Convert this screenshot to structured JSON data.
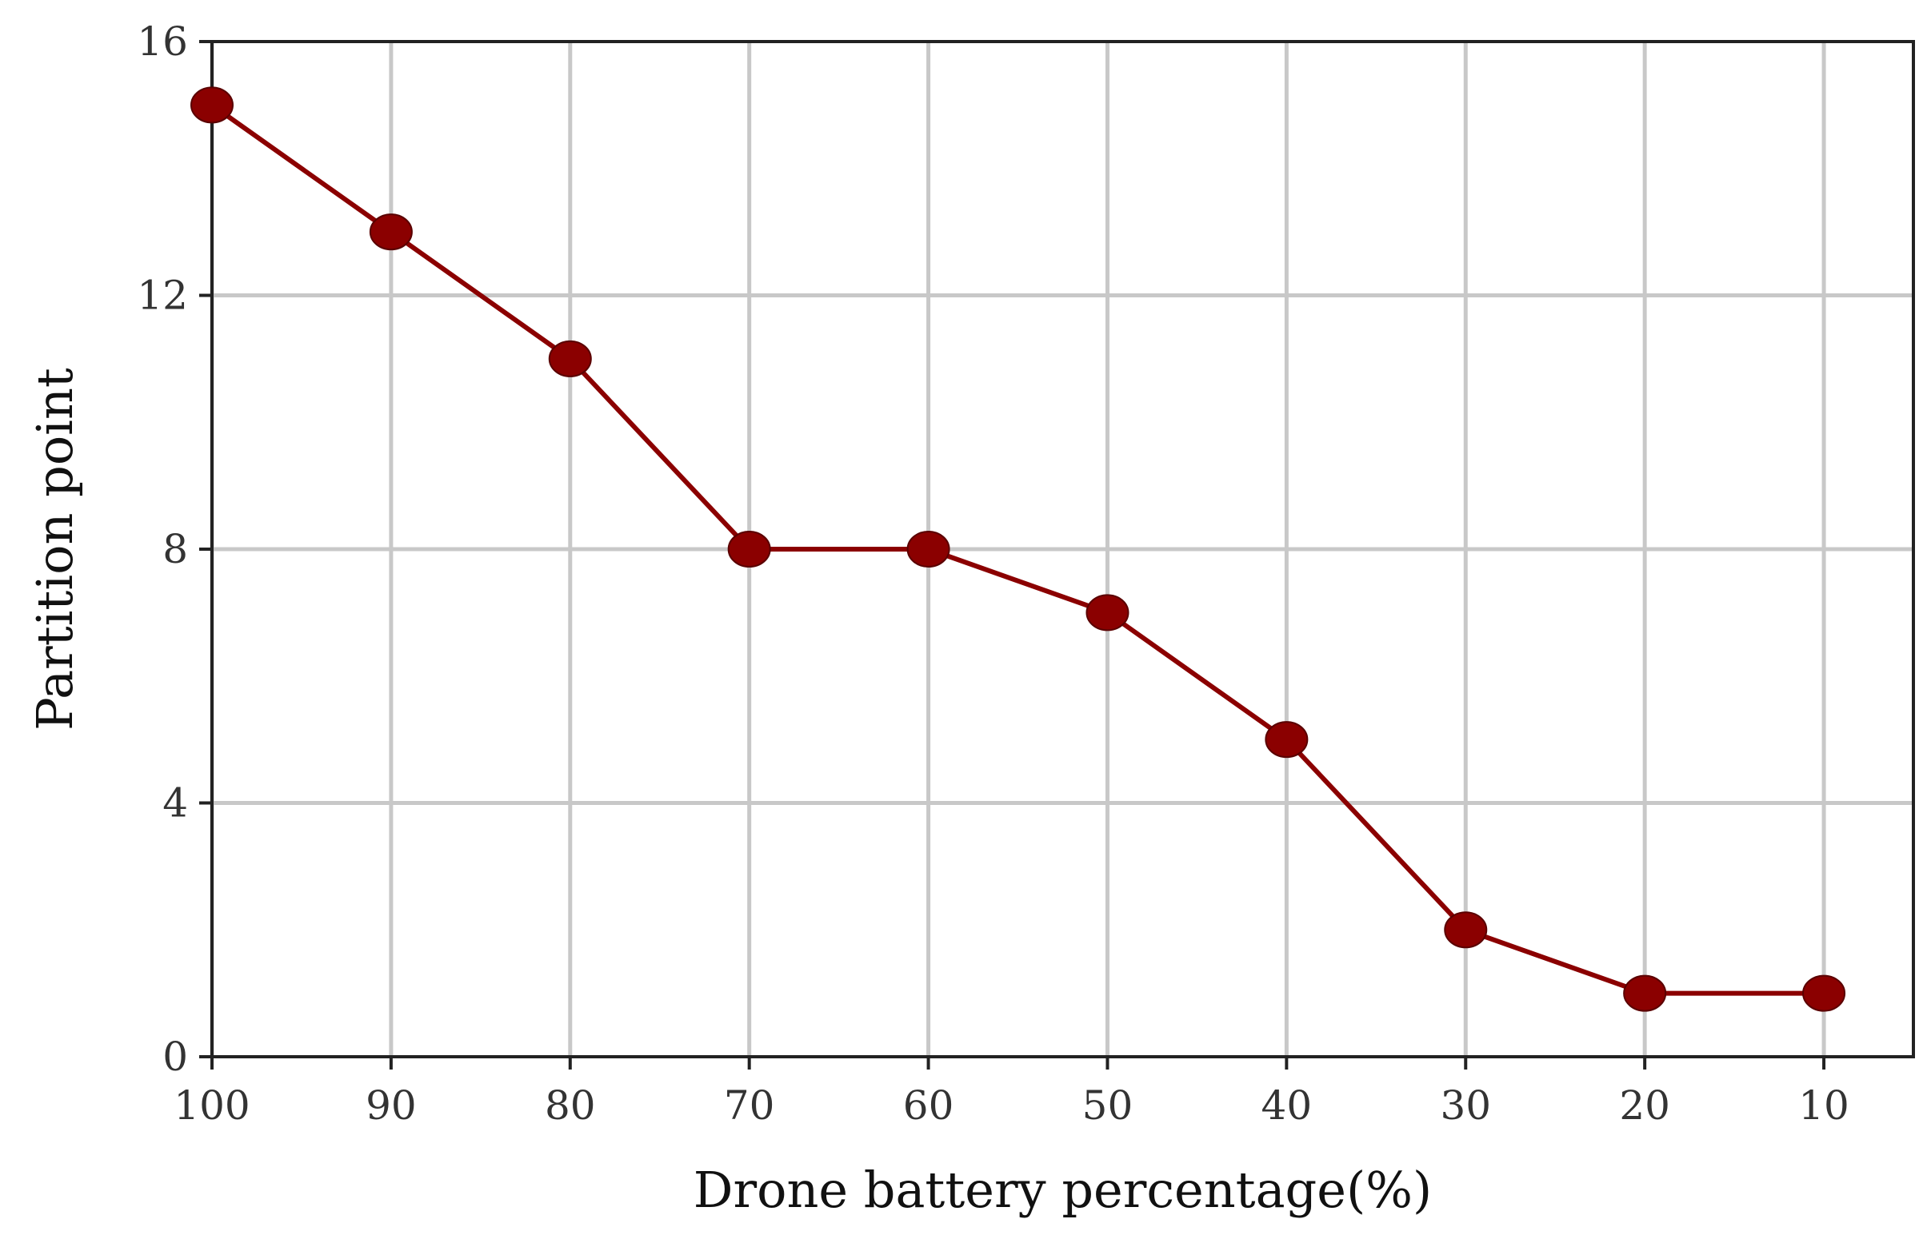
{
  "chart_data": {
    "type": "line",
    "title": "",
    "xlabel": "Drone battery percentage(%)",
    "ylabel": "Partition point",
    "x": [
      100,
      90,
      80,
      70,
      60,
      50,
      40,
      30,
      20,
      10
    ],
    "x_tick_labels": [
      "100",
      "90",
      "80",
      "70",
      "60",
      "50",
      "40",
      "30",
      "20",
      "10"
    ],
    "y_tick_labels": [
      "0",
      "4",
      "8",
      "12",
      "16"
    ],
    "y_ticks": [
      0,
      4,
      8,
      12,
      16
    ],
    "xlim": [
      100,
      5
    ],
    "ylim": [
      0,
      16
    ],
    "grid": true,
    "series": [
      {
        "values": [
          15,
          13,
          11,
          8,
          8,
          7,
          5,
          2,
          1,
          1
        ],
        "color": "#8b0000",
        "marker": "circle"
      }
    ]
  }
}
